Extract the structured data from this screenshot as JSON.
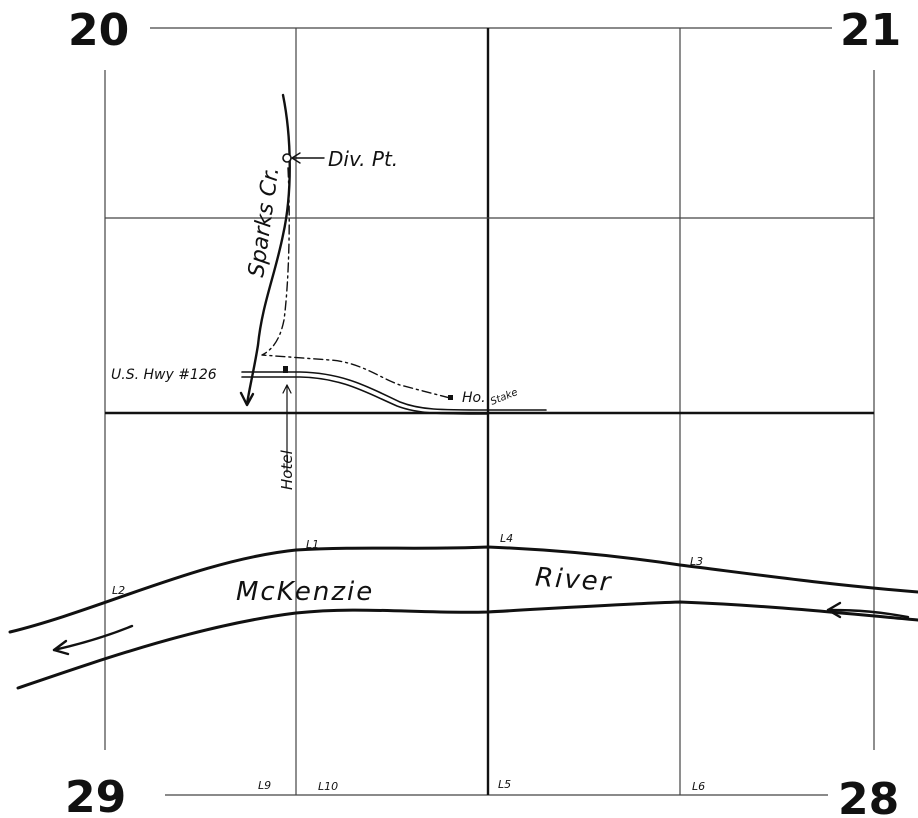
{
  "corners": {
    "nw": "20",
    "ne": "21",
    "sw": "29",
    "se": "28"
  },
  "labels": {
    "creek": "Sparks Cr.",
    "div_point": "Div. Pt.",
    "highway": "U.S. Hwy #126",
    "hotel": "Hotel",
    "ho": "Ho.",
    "stake": "Stake",
    "river_word1": "McKenzie",
    "river_word2": "River"
  },
  "lots": {
    "l1": "L1",
    "l2": "L2",
    "l3": "L3",
    "l4": "L4",
    "l5": "L5",
    "l6": "L6",
    "l9": "L9",
    "l10": "L10"
  },
  "colors": {
    "ink": "#111111",
    "paper": "#ffffff"
  }
}
